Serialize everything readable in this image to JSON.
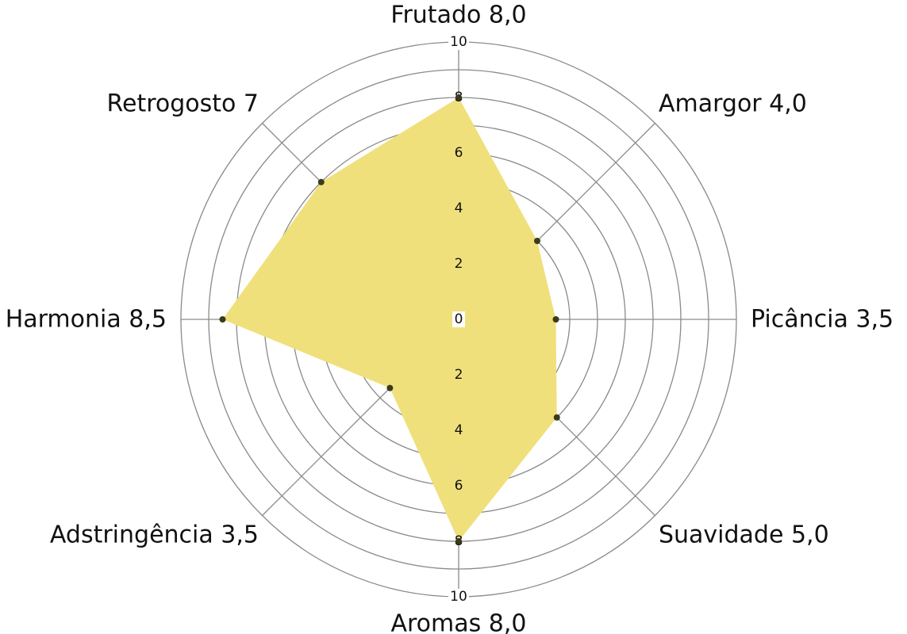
{
  "chart_data": {
    "type": "radar",
    "axes": [
      {
        "name": "Frutado",
        "value": 8.0,
        "label": "Frutado 8,0"
      },
      {
        "name": "Amargor",
        "value": 4.0,
        "label": "Amargor 4,0"
      },
      {
        "name": "Picância",
        "value": 3.5,
        "label": "Picância 3,5"
      },
      {
        "name": "Suavidade",
        "value": 5.0,
        "label": "Suavidade 5,0"
      },
      {
        "name": "Aromas",
        "value": 8.0,
        "label": "Aromas 8,0"
      },
      {
        "name": "Adstringência",
        "value": 3.5,
        "label": "Adstringência 3,5"
      },
      {
        "name": "Harmonia",
        "value": 8.5,
        "label": "Harmonia 8,5"
      },
      {
        "name": "Retrogosto",
        "value": 7,
        "label": "Retrogosto 7"
      }
    ],
    "rlim": [
      0,
      10
    ],
    "rings": [
      1,
      2,
      3,
      4,
      5,
      6,
      7,
      8,
      9,
      10
    ],
    "tick_labels_top": [
      "0",
      "2",
      "4",
      "6",
      "8",
      "10"
    ],
    "tick_labels_bottom": [
      "2",
      "4",
      "6",
      "8",
      "10"
    ],
    "tick_values": [
      0,
      2,
      4,
      6,
      8,
      10
    ],
    "grid": true,
    "colors": {
      "fill": "#f0e07c",
      "point": "#3b3a1a",
      "grid": "#8a8a8a",
      "text": "#111111"
    }
  }
}
